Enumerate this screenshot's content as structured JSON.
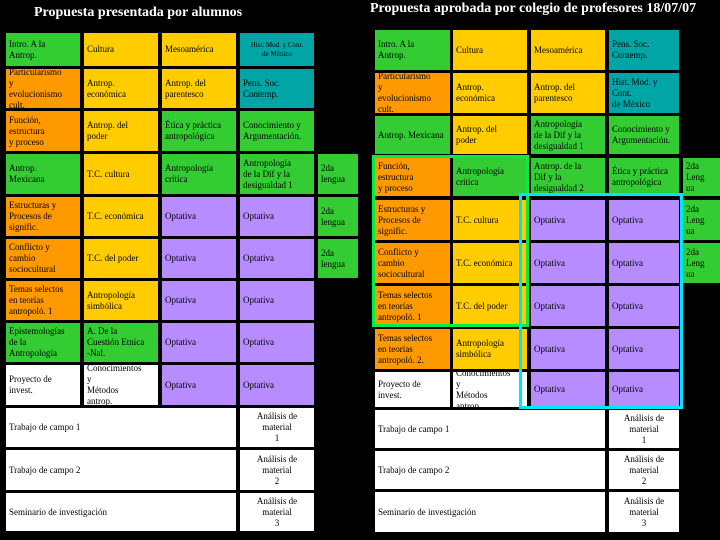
{
  "titles": {
    "left": "Propuesta presentada por alumnos",
    "right": "Propuesta aprobada por colegio de profesores 18/07/07"
  },
  "colors": {
    "orange": "#ff9900",
    "yellow": "#ffcc00",
    "green": "#33cc33",
    "teal": "#00a6a6",
    "purple": "#b78cff",
    "white": "#ffffff",
    "highlight_cyan": "#00e5ff",
    "highlight_green": "#00ee44",
    "background": "#000000"
  },
  "left": {
    "c0": "Intro. A la\nAntrop.",
    "c1": "Cultura",
    "c2": "Mesoamérica",
    "c3": "Hist. Mod. y Cont.\nde México",
    "c4": "Particularismo\ny\nevolucionismo\ncult.",
    "c5": "Antrop.\neconómica",
    "c6": "Antrop. del\nparentesco",
    "c7": "Pens. Soc.\nContemp.",
    "c8": "Función,\nestructura\ny proceso",
    "c9": "Antrop. del\npoder",
    "c10": "Ética y práctica\nantropológica",
    "c11": "Conocimiento y\nArgumentación.",
    "c12": "Antrop.\nMexicana",
    "c13": "T.C. cultura",
    "c14": "Antropología\ncrítica",
    "c15": "Antropología\nde la Dif y la\ndesigualdad 1",
    "c16": "2da\nlengua",
    "c17": "Estructuras y\nProcesos de\nsignific.",
    "c18": "T.C. económica",
    "c19": "Optativa",
    "c20": "Optativa",
    "c21": "2da\nlengua",
    "c22": "Conflicto y\ncambio\nsociocultural",
    "c23": "T.C. del poder",
    "c24": "Optativa",
    "c25": "Optativa",
    "c26": "2da\nlengua",
    "c27": "Temas selectos\nen teorías\nantropoló. 1",
    "c28": "Antropología\nsimbólica",
    "c29": "Optativa",
    "c30": "Optativa",
    "c31": "Epistemologías\nde la\nAntropología",
    "c32": "A. De la\nCuestión Etnica\n-Nal.",
    "c33": "Optativa",
    "c34": "Optativa",
    "c35": "Proyecto de\ninvest.",
    "c36": "Conocimientos\ny\nMétodos\nantrop.",
    "c37": "Optativa",
    "c38": "Optativa",
    "c39": "Trabajo de campo 1",
    "c40": "Análisis de\nmaterial\n1",
    "c41": "Trabajo de campo 2",
    "c42": "Análisis de\nmaterial\n2",
    "c43": "Seminario de investigación",
    "c44": "Análisis de\nmaterial\n3"
  },
  "right": {
    "c0": "Intro. A la\nAntrop.",
    "c1": "Cultura",
    "c2": "Mesoamérica",
    "c3": "Pens. Soc.\nContemp.",
    "c4": "Particularismo\ny\nevolucionismo\ncult.",
    "c5": "Antrop.\neconómica",
    "c6": "Antrop. del\nparentesco",
    "c7": "Hist. Mod. y\nCont.\nde México",
    "c8": "Antrop. Mexicana",
    "c9": "Antrop. del\npoder",
    "c10": "Antropología\nde la Dif y la\ndesigualdad 1",
    "c11": "Conocimiento y\nArgumentación.",
    "c12": "Función,\nestructura\ny proceso",
    "c13": "Antropología\ncrítica",
    "c14": "Antrop. de la\nDif y la\ndesigualdad 2",
    "c15": "Ética y práctica\nantropológica",
    "c16": "2da\nLeng\nua",
    "c17": "Estructuras y\nProcesos de\nsignific.",
    "c18": "T.C. cultura",
    "c19": "Optativa",
    "c20": "Optativa",
    "c21": "2da\nLeng\nua",
    "c22": "Conflicto y\ncambio\nsociocultural",
    "c23": "T.C. económica",
    "c24": "Optativa",
    "c25": "Optativa",
    "c26": "2da\nLeng\nua",
    "c27": "Temas selectos\nen teorías\nantropoló. 1",
    "c28": "T.C. del poder",
    "c29": "Optativa",
    "c30": "Optativa",
    "c31": "Temas selectos\nen teorías\nantropoló. 2.",
    "c32": "Antropología\nsimbólica",
    "c33": "Optativa",
    "c34": "Optativa",
    "c35": "Proyecto de\ninvest.",
    "c36": "Conocimientos\ny\nMétodos\nantrop.",
    "c37": "Optativa",
    "c38": "Optativa",
    "c39": "Trabajo de campo 1",
    "c40": "Análisis de\nmaterial\n1",
    "c41": "Trabajo de campo 2",
    "c42": "Análisis de\nmaterial\n2",
    "c43": "Seminario de investigación",
    "c44": "Análisis de\nmaterial\n3"
  }
}
